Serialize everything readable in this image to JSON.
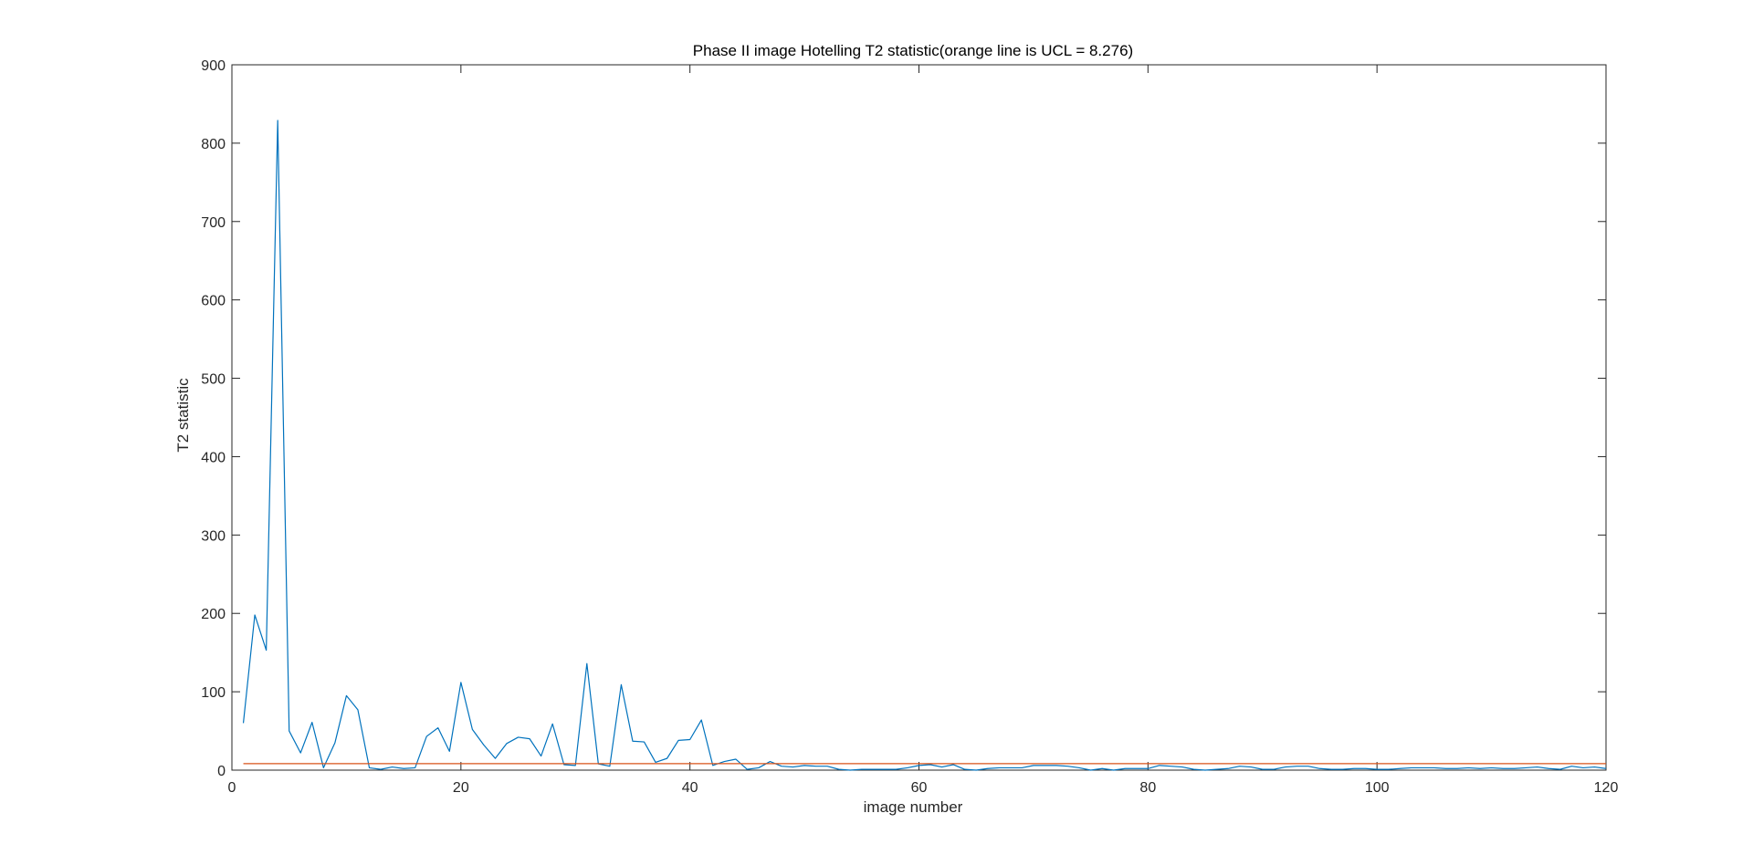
{
  "chart_data": {
    "type": "line",
    "title": "Phase II image Hotelling T2 statistic(orange line is UCL = 8.276)",
    "xlabel": "image number",
    "ylabel": "T2 statistic",
    "xlim": [
      0,
      120
    ],
    "ylim": [
      0,
      900
    ],
    "xticks": [
      0,
      20,
      40,
      60,
      80,
      100,
      120
    ],
    "yticks": [
      0,
      100,
      200,
      300,
      400,
      500,
      600,
      700,
      800,
      900
    ],
    "grid": false,
    "legend": "none",
    "colors": {
      "t2": "#0072BD",
      "ucl": "#D95319",
      "axes": "#262626"
    },
    "series": [
      {
        "x": [
          1,
          2,
          3,
          4,
          5,
          6,
          7,
          8,
          9,
          10,
          11,
          12,
          13,
          14,
          15,
          16,
          17,
          18,
          19,
          20,
          21,
          22,
          23,
          24,
          25,
          26,
          27,
          28,
          29,
          30,
          31,
          32,
          33,
          34,
          35,
          36,
          37,
          38,
          39,
          40,
          41,
          42,
          43,
          44,
          45,
          46,
          47,
          48,
          49,
          50,
          51,
          52,
          53,
          54,
          55,
          56,
          57,
          58,
          59,
          60,
          61,
          62,
          63,
          64,
          65,
          66,
          67,
          68,
          69,
          70,
          71,
          72,
          73,
          74,
          75,
          76,
          77,
          78,
          79,
          80,
          81,
          82,
          83,
          84,
          85,
          86,
          87,
          88,
          89,
          90,
          91,
          92,
          93,
          94,
          95,
          96,
          97,
          98,
          99,
          100,
          101,
          102,
          103,
          104,
          105,
          106,
          107,
          108,
          109,
          110,
          111,
          112,
          113,
          114,
          115,
          116,
          117,
          118,
          119,
          120
        ],
        "values": [
          60,
          198,
          153,
          829,
          50,
          22,
          61,
          3,
          35,
          95,
          77,
          3,
          1,
          4,
          2,
          3,
          43,
          54,
          24,
          112,
          52,
          32,
          15,
          34,
          42,
          40,
          18,
          59,
          7,
          6,
          136,
          8,
          5,
          109,
          37,
          36,
          10,
          15,
          38,
          39,
          64,
          6,
          11,
          14,
          1,
          3,
          11,
          5,
          4,
          6,
          5,
          5,
          1,
          0,
          1,
          1,
          1,
          1,
          3,
          6,
          7,
          4,
          7,
          1,
          0,
          2,
          3,
          3,
          3,
          6,
          6,
          6,
          5,
          3,
          0,
          2,
          0,
          2,
          2,
          2,
          6,
          5,
          4,
          1,
          0,
          1,
          2,
          5,
          4,
          1,
          1,
          4,
          5,
          5,
          2,
          1,
          1,
          2,
          2,
          1,
          1,
          2,
          3,
          3,
          3,
          2,
          2,
          3,
          2,
          3,
          2,
          2,
          3,
          4,
          2,
          1,
          5,
          3,
          4,
          2
        ]
      },
      {
        "x": [
          1,
          120
        ],
        "values": [
          8.276,
          8.276
        ]
      }
    ]
  }
}
